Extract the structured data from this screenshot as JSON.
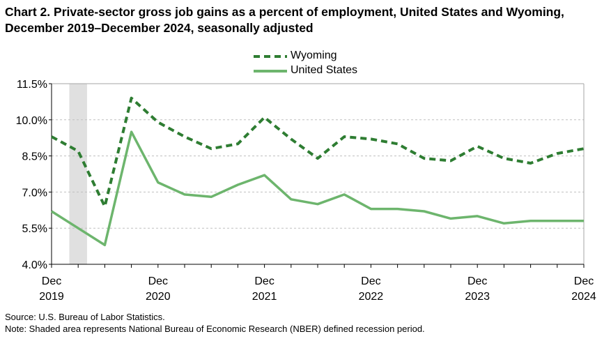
{
  "title": "Chart 2. Private-sector gross job gains as a percent of employment, United States and Wyoming, December 2019–December 2024, seasonally adjusted",
  "source": "Source: U.S. Bureau of Labor Statistics.",
  "note": "Note: Shaded area represents National Bureau of Economic Research (NBER) defined recession period.",
  "colors": {
    "wyoming": "#2e7d32",
    "united_states": "#6db56d",
    "recession": "#e0e0e0",
    "grid": "#bfbfbf"
  },
  "chart_data": {
    "type": "line",
    "title": "Chart 2. Private-sector gross job gains as a percent of employment, United States and Wyoming, December 2019–December 2024, seasonally adjusted",
    "ylim": [
      4.0,
      11.5
    ],
    "yticks": [
      "4.0%",
      "5.5%",
      "7.0%",
      "8.5%",
      "10.0%",
      "11.5%"
    ],
    "ytick_values": [
      4.0,
      5.5,
      7.0,
      8.5,
      10.0,
      11.5
    ],
    "x": [
      "Dec 2019",
      "Mar 2020",
      "Jun 2020",
      "Sep 2020",
      "Dec 2020",
      "Mar 2021",
      "Jun 2021",
      "Sep 2021",
      "Dec 2021",
      "Mar 2022",
      "Jun 2022",
      "Sep 2022",
      "Dec 2022",
      "Mar 2023",
      "Jun 2023",
      "Sep 2023",
      "Dec 2023",
      "Mar 2024",
      "Jun 2024",
      "Sep 2024",
      "Dec 2024"
    ],
    "xtick_labels": [
      {
        "month": "Dec",
        "year": "2019",
        "index": 0
      },
      {
        "month": "Dec",
        "year": "2020",
        "index": 4
      },
      {
        "month": "Dec",
        "year": "2021",
        "index": 8
      },
      {
        "month": "Dec",
        "year": "2022",
        "index": 12
      },
      {
        "month": "Dec",
        "year": "2023",
        "index": 16
      },
      {
        "month": "Dec",
        "year": "2024",
        "index": 20
      }
    ],
    "recession": {
      "start": "Feb 2020",
      "end": "Apr 2020"
    },
    "series": [
      {
        "name": "Wyoming",
        "style": "dashed",
        "values": [
          9.3,
          8.7,
          6.4,
          10.9,
          9.9,
          9.3,
          8.8,
          9.0,
          10.1,
          9.2,
          8.4,
          9.3,
          9.2,
          9.0,
          8.4,
          8.3,
          8.9,
          8.4,
          8.2,
          8.6,
          8.8
        ]
      },
      {
        "name": "United States",
        "style": "solid",
        "values": [
          6.2,
          5.5,
          4.8,
          9.5,
          7.4,
          6.9,
          6.8,
          7.3,
          7.7,
          6.7,
          6.5,
          6.9,
          6.3,
          6.3,
          6.2,
          5.9,
          6.0,
          5.7,
          5.8,
          5.8,
          5.8
        ]
      }
    ],
    "grid": true,
    "legend": "top-center"
  }
}
